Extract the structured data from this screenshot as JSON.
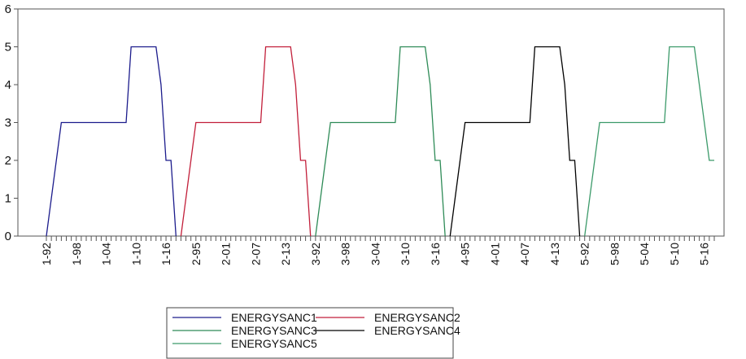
{
  "chart_data": {
    "type": "line",
    "categories": [
      "1-92",
      null,
      null,
      null,
      null,
      null,
      "1-98",
      null,
      null,
      null,
      null,
      null,
      "1-04",
      null,
      null,
      null,
      null,
      null,
      "1-10",
      null,
      null,
      null,
      null,
      null,
      "1-16",
      null,
      null,
      null,
      null,
      null,
      "2-95",
      null,
      null,
      null,
      null,
      null,
      "2-01",
      null,
      null,
      null,
      null,
      null,
      "2-07",
      null,
      null,
      null,
      null,
      null,
      "2-13",
      null,
      null,
      null,
      null,
      null,
      "3-92",
      null,
      null,
      null,
      null,
      null,
      "3-98",
      null,
      null,
      null,
      null,
      null,
      "3-04",
      null,
      null,
      null,
      null,
      null,
      "3-10",
      null,
      null,
      null,
      null,
      null,
      "3-16",
      null,
      null,
      null,
      null,
      null,
      "4-95",
      null,
      null,
      null,
      null,
      null,
      "4-01",
      null,
      null,
      null,
      null,
      null,
      "4-07",
      null,
      null,
      null,
      null,
      null,
      "4-13",
      null,
      null,
      null,
      null,
      null,
      "5-92",
      null,
      null,
      null,
      null,
      null,
      "5-98",
      null,
      null,
      null,
      null,
      null,
      "5-04",
      null,
      null,
      null,
      null,
      null,
      "5-10",
      null,
      null,
      null,
      null,
      null,
      "5-16",
      null,
      null
    ],
    "series": [
      {
        "name": "ENERGYSANC1",
        "color": "#1c1c8c",
        "values": [
          0,
          1,
          2,
          3,
          3,
          3,
          3,
          3,
          3,
          3,
          3,
          3,
          3,
          3,
          3,
          3,
          3,
          5,
          5,
          5,
          5,
          5,
          5,
          4,
          2,
          2,
          0,
          null,
          null,
          null,
          null,
          null,
          null,
          null,
          null,
          null,
          null,
          null,
          null,
          null,
          null,
          null,
          null,
          null,
          null,
          null,
          null,
          null,
          null,
          null,
          null,
          null,
          null,
          null,
          null,
          null,
          null,
          null,
          null,
          null,
          null,
          null,
          null,
          null,
          null,
          null,
          null,
          null,
          null,
          null,
          null,
          null,
          null,
          null,
          null,
          null,
          null,
          null,
          null,
          null,
          null,
          null,
          null,
          null,
          null,
          null,
          null,
          null,
          null,
          null,
          null,
          null,
          null,
          null,
          null,
          null,
          null,
          null,
          null,
          null,
          null,
          null,
          null,
          null,
          null,
          null,
          null,
          null,
          null,
          null,
          null,
          null,
          null,
          null,
          null,
          null,
          null,
          null,
          null,
          null,
          null,
          null,
          null,
          null,
          null,
          null,
          null,
          null,
          null,
          null,
          null,
          null,
          null,
          null,
          null
        ]
      },
      {
        "name": "ENERGYSANC2",
        "color": "#c21f3a",
        "values": [
          null,
          null,
          null,
          null,
          null,
          null,
          null,
          null,
          null,
          null,
          null,
          null,
          null,
          null,
          null,
          null,
          null,
          null,
          null,
          null,
          null,
          null,
          null,
          null,
          null,
          null,
          null,
          0,
          1,
          2,
          3,
          3,
          3,
          3,
          3,
          3,
          3,
          3,
          3,
          3,
          3,
          3,
          3,
          3,
          5,
          5,
          5,
          5,
          5,
          5,
          4,
          2,
          2,
          0,
          null,
          null,
          null,
          null,
          null,
          null,
          null,
          null,
          null,
          null,
          null,
          null,
          null,
          null,
          null,
          null,
          null,
          null,
          null,
          null,
          null,
          null,
          null,
          null,
          null,
          null,
          null,
          null,
          null,
          null,
          null,
          null,
          null,
          null,
          null,
          null,
          null,
          null,
          null,
          null,
          null,
          null,
          null,
          null,
          null,
          null,
          null,
          null,
          null,
          null,
          null,
          null,
          null,
          null,
          null,
          null,
          null,
          null,
          null,
          null,
          null,
          null,
          null,
          null,
          null,
          null,
          null,
          null,
          null,
          null,
          null,
          null,
          null,
          null,
          null,
          null,
          null,
          null,
          null,
          null,
          null
        ]
      },
      {
        "name": "ENERGYSANC3",
        "color": "#2e8b57",
        "values": [
          null,
          null,
          null,
          null,
          null,
          null,
          null,
          null,
          null,
          null,
          null,
          null,
          null,
          null,
          null,
          null,
          null,
          null,
          null,
          null,
          null,
          null,
          null,
          null,
          null,
          null,
          null,
          null,
          null,
          null,
          null,
          null,
          null,
          null,
          null,
          null,
          null,
          null,
          null,
          null,
          null,
          null,
          null,
          null,
          null,
          null,
          null,
          null,
          null,
          null,
          null,
          null,
          null,
          null,
          0,
          1,
          2,
          3,
          3,
          3,
          3,
          3,
          3,
          3,
          3,
          3,
          3,
          3,
          3,
          3,
          3,
          5,
          5,
          5,
          5,
          5,
          5,
          4,
          2,
          2,
          0,
          null,
          null,
          null,
          null,
          null,
          null,
          null,
          null,
          null,
          null,
          null,
          null,
          null,
          null,
          null,
          null,
          null,
          null,
          null,
          null,
          null,
          null,
          null,
          null,
          null,
          null,
          null,
          null,
          null,
          null,
          null,
          null,
          null,
          null,
          null,
          null,
          null,
          null,
          null,
          null,
          null,
          null,
          null,
          null,
          null,
          null,
          null,
          null,
          null,
          null,
          null,
          null,
          null,
          null
        ]
      },
      {
        "name": "ENERGYSANC4",
        "color": "#000000",
        "values": [
          null,
          null,
          null,
          null,
          null,
          null,
          null,
          null,
          null,
          null,
          null,
          null,
          null,
          null,
          null,
          null,
          null,
          null,
          null,
          null,
          null,
          null,
          null,
          null,
          null,
          null,
          null,
          null,
          null,
          null,
          null,
          null,
          null,
          null,
          null,
          null,
          null,
          null,
          null,
          null,
          null,
          null,
          null,
          null,
          null,
          null,
          null,
          null,
          null,
          null,
          null,
          null,
          null,
          null,
          null,
          null,
          null,
          null,
          null,
          null,
          null,
          null,
          null,
          null,
          null,
          null,
          null,
          null,
          null,
          null,
          null,
          null,
          null,
          null,
          null,
          null,
          null,
          null,
          null,
          null,
          null,
          0,
          1,
          2,
          3,
          3,
          3,
          3,
          3,
          3,
          3,
          3,
          3,
          3,
          3,
          3,
          3,
          3,
          5,
          5,
          5,
          5,
          5,
          5,
          4,
          2,
          2,
          0,
          null,
          null,
          null,
          null,
          null,
          null,
          null,
          null,
          null,
          null,
          null,
          null,
          null,
          null,
          null,
          null,
          null,
          null,
          null,
          null,
          null,
          null,
          null,
          null,
          null,
          null,
          null
        ]
      },
      {
        "name": "ENERGYSANC5",
        "color": "#3c9a6a",
        "values": [
          null,
          null,
          null,
          null,
          null,
          null,
          null,
          null,
          null,
          null,
          null,
          null,
          null,
          null,
          null,
          null,
          null,
          null,
          null,
          null,
          null,
          null,
          null,
          null,
          null,
          null,
          null,
          null,
          null,
          null,
          null,
          null,
          null,
          null,
          null,
          null,
          null,
          null,
          null,
          null,
          null,
          null,
          null,
          null,
          null,
          null,
          null,
          null,
          null,
          null,
          null,
          null,
          null,
          null,
          null,
          null,
          null,
          null,
          null,
          null,
          null,
          null,
          null,
          null,
          null,
          null,
          null,
          null,
          null,
          null,
          null,
          null,
          null,
          null,
          null,
          null,
          null,
          null,
          null,
          null,
          null,
          null,
          null,
          null,
          null,
          null,
          null,
          null,
          null,
          null,
          null,
          null,
          null,
          null,
          null,
          null,
          null,
          null,
          null,
          null,
          null,
          null,
          null,
          null,
          null,
          null,
          null,
          null,
          0,
          1,
          2,
          3,
          3,
          3,
          3,
          3,
          3,
          3,
          3,
          3,
          3,
          3,
          3,
          3,
          3,
          5,
          5,
          5,
          5,
          5,
          5,
          4,
          3,
          2,
          2
        ]
      }
    ],
    "ylim": [
      0,
      6
    ],
    "yticks": [
      0,
      1,
      2,
      3,
      4,
      5,
      6
    ]
  }
}
